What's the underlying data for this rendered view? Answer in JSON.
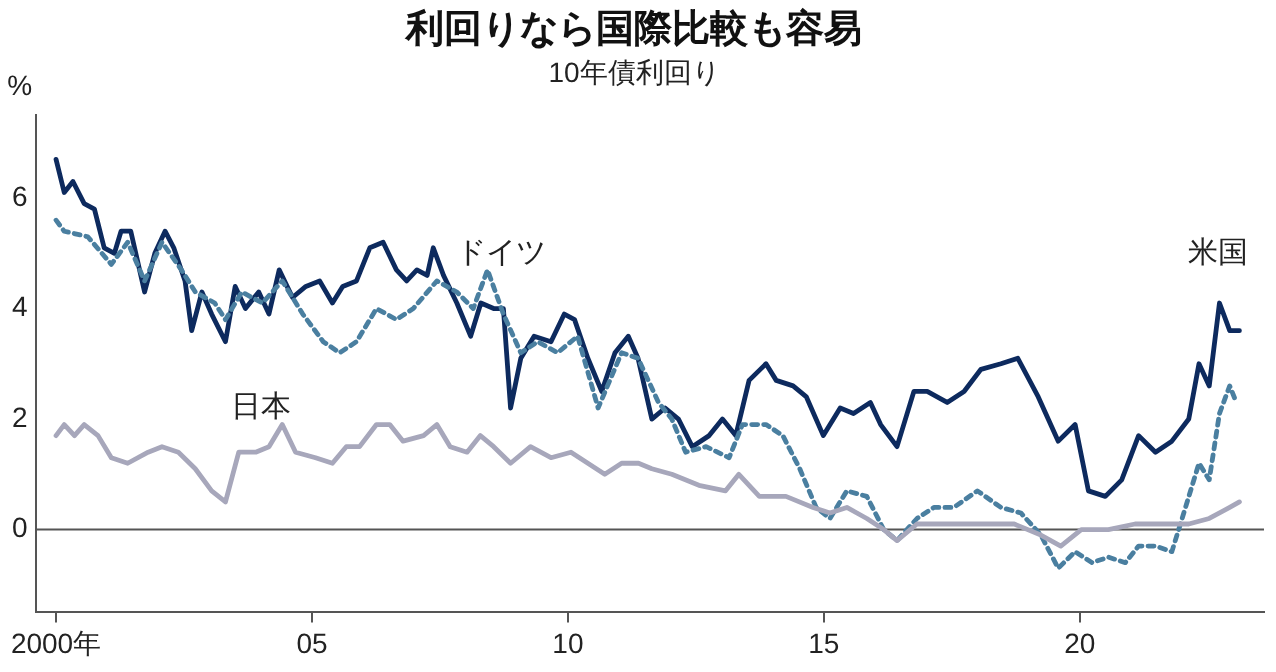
{
  "chart_data": {
    "type": "line",
    "title": "利回りなら国際比較も容易",
    "subtitle": "10年債利回り",
    "ylabel": "%",
    "xlim": [
      1999.6,
      2023.6
    ],
    "ylim": [
      -1.5,
      7.5
    ],
    "xticks": [
      {
        "value": 2000,
        "label": "2000年"
      },
      {
        "value": 2005,
        "label": "05"
      },
      {
        "value": 2010,
        "label": "10"
      },
      {
        "value": 2015,
        "label": "15"
      },
      {
        "value": 2020,
        "label": "20"
      }
    ],
    "yticks": [
      0,
      2,
      4,
      6
    ],
    "grid": false,
    "legend": false,
    "marker": "none",
    "ref_lines": [
      {
        "axis": "y",
        "value": 0,
        "color": "#555555"
      }
    ],
    "series": [
      {
        "name": "米国",
        "color": "#0d2a5e",
        "line_style": "solid",
        "x": [
          2000,
          2000.16,
          2000.33,
          2000.55,
          2000.75,
          2000.94,
          2001.14,
          2001.27,
          2001.46,
          2001.73,
          2001.93,
          2002.13,
          2002.3,
          2002.52,
          2002.65,
          2002.85,
          2003.04,
          2003.31,
          2003.5,
          2003.7,
          2003.96,
          2004.16,
          2004.36,
          2004.62,
          2004.88,
          2005.15,
          2005.4,
          2005.6,
          2005.87,
          2006.13,
          2006.39,
          2006.65,
          2006.85,
          2007.05,
          2007.25,
          2007.37,
          2007.57,
          2007.83,
          2008.1,
          2008.3,
          2008.55,
          2008.74,
          2008.88,
          2009.08,
          2009.34,
          2009.67,
          2009.93,
          2010.13,
          2010.39,
          2010.66,
          2010.92,
          2011.18,
          2011.37,
          2011.64,
          2011.9,
          2012.16,
          2012.43,
          2012.76,
          2013.02,
          2013.28,
          2013.54,
          2013.87,
          2014.07,
          2014.4,
          2014.66,
          2014.99,
          2015.32,
          2015.58,
          2015.91,
          2016.11,
          2016.43,
          2016.76,
          2017.02,
          2017.41,
          2017.74,
          2018.07,
          2018.46,
          2018.79,
          2019.19,
          2019.58,
          2019.91,
          2020.17,
          2020.5,
          2020.82,
          2021.15,
          2021.48,
          2021.8,
          2022.13,
          2022.33,
          2022.53,
          2022.73,
          2022.93,
          2023.12
        ],
        "values": [
          6.7,
          6.1,
          6.3,
          5.9,
          5.8,
          5.1,
          5.0,
          5.4,
          5.4,
          4.3,
          5.0,
          5.4,
          5.1,
          4.5,
          3.6,
          4.3,
          3.9,
          3.4,
          4.4,
          4.0,
          4.3,
          3.9,
          4.7,
          4.2,
          4.4,
          4.5,
          4.1,
          4.4,
          4.5,
          5.1,
          5.2,
          4.7,
          4.5,
          4.7,
          4.6,
          5.1,
          4.6,
          4.1,
          3.5,
          4.1,
          4.0,
          4.0,
          2.2,
          3.1,
          3.5,
          3.4,
          3.9,
          3.8,
          3.1,
          2.5,
          3.2,
          3.5,
          3.1,
          2.0,
          2.2,
          2.0,
          1.5,
          1.7,
          2.0,
          1.7,
          2.7,
          3.0,
          2.7,
          2.6,
          2.4,
          1.7,
          2.2,
          2.1,
          2.3,
          1.9,
          1.5,
          2.5,
          2.5,
          2.3,
          2.5,
          2.9,
          3.0,
          3.1,
          2.4,
          1.6,
          1.9,
          0.7,
          0.6,
          0.9,
          1.7,
          1.4,
          1.6,
          2.0,
          3.0,
          2.6,
          4.1,
          3.6,
          3.6
        ]
      },
      {
        "name": "ドイツ",
        "color": "#4a7fa0",
        "line_style": "dotted",
        "x": [
          2000,
          2000.16,
          2000.62,
          2001.08,
          2001.4,
          2001.73,
          2002.07,
          2002.45,
          2002.72,
          2003.1,
          2003.31,
          2003.63,
          2004.03,
          2004.42,
          2004.82,
          2005.22,
          2005.54,
          2005.87,
          2006.26,
          2006.65,
          2006.98,
          2007.44,
          2007.83,
          2008.15,
          2008.43,
          2008.74,
          2009.08,
          2009.41,
          2009.8,
          2010.19,
          2010.59,
          2011.05,
          2011.37,
          2011.77,
          2012.03,
          2012.3,
          2012.7,
          2013.15,
          2013.41,
          2013.87,
          2014.2,
          2014.53,
          2014.85,
          2015.12,
          2015.45,
          2015.84,
          2016.17,
          2016.43,
          2016.82,
          2017.15,
          2017.54,
          2018.0,
          2018.46,
          2018.85,
          2019.24,
          2019.58,
          2019.91,
          2020.24,
          2020.56,
          2020.89,
          2021.15,
          2021.48,
          2021.8,
          2022.0,
          2022.33,
          2022.53,
          2022.73,
          2022.93,
          2023.06
        ],
        "values": [
          5.6,
          5.4,
          5.3,
          4.8,
          5.2,
          4.5,
          5.2,
          4.7,
          4.3,
          4.1,
          3.8,
          4.3,
          4.1,
          4.5,
          3.9,
          3.4,
          3.2,
          3.4,
          4.0,
          3.8,
          4.0,
          4.5,
          4.3,
          4.0,
          4.7,
          3.9,
          3.2,
          3.4,
          3.2,
          3.5,
          2.2,
          3.2,
          3.1,
          2.3,
          2.0,
          1.4,
          1.5,
          1.3,
          1.9,
          1.9,
          1.7,
          1.1,
          0.4,
          0.2,
          0.7,
          0.6,
          0.0,
          -0.2,
          0.2,
          0.4,
          0.4,
          0.7,
          0.4,
          0.3,
          -0.1,
          -0.7,
          -0.4,
          -0.6,
          -0.5,
          -0.6,
          -0.3,
          -0.3,
          -0.4,
          0.2,
          1.2,
          0.9,
          2.1,
          2.6,
          2.3
        ]
      },
      {
        "name": "日本",
        "color": "#a7a7bb",
        "line_style": "solid",
        "x": [
          2000,
          2000.16,
          2000.36,
          2000.55,
          2000.82,
          2001.08,
          2001.4,
          2001.8,
          2002.07,
          2002.39,
          2002.72,
          2003.04,
          2003.31,
          2003.57,
          2003.9,
          2004.16,
          2004.42,
          2004.68,
          2005.07,
          2005.4,
          2005.67,
          2005.93,
          2006.26,
          2006.52,
          2006.78,
          2007.18,
          2007.44,
          2007.7,
          2008.03,
          2008.29,
          2008.55,
          2008.88,
          2009.27,
          2009.67,
          2010.06,
          2010.39,
          2010.72,
          2011.05,
          2011.38,
          2011.64,
          2012.03,
          2012.56,
          2013.08,
          2013.34,
          2013.74,
          2014.26,
          2014.79,
          2015.12,
          2015.45,
          2015.84,
          2016.17,
          2016.43,
          2016.82,
          2017.41,
          2018.07,
          2018.72,
          2019.24,
          2019.63,
          2020.03,
          2020.56,
          2021.08,
          2021.6,
          2022.13,
          2022.53,
          2022.93,
          2023.12
        ],
        "values": [
          1.7,
          1.9,
          1.7,
          1.9,
          1.7,
          1.3,
          1.2,
          1.4,
          1.5,
          1.4,
          1.1,
          0.7,
          0.5,
          1.4,
          1.4,
          1.5,
          1.9,
          1.4,
          1.3,
          1.2,
          1.5,
          1.5,
          1.9,
          1.9,
          1.6,
          1.7,
          1.9,
          1.5,
          1.4,
          1.7,
          1.5,
          1.2,
          1.5,
          1.3,
          1.4,
          1.2,
          1.0,
          1.2,
          1.2,
          1.1,
          1.0,
          0.8,
          0.7,
          1.0,
          0.6,
          0.6,
          0.4,
          0.3,
          0.4,
          0.2,
          0.0,
          -0.2,
          0.1,
          0.1,
          0.1,
          0.1,
          -0.1,
          -0.3,
          0.0,
          0.0,
          0.1,
          0.1,
          0.1,
          0.2,
          0.4,
          0.5
        ]
      }
    ]
  }
}
